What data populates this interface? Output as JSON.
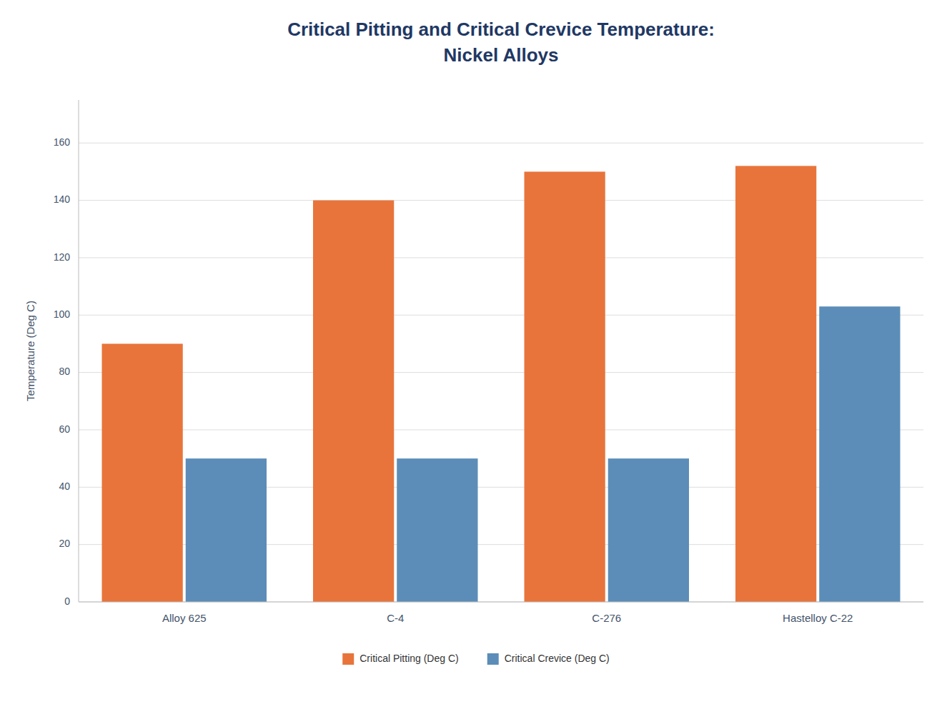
{
  "chart_data": {
    "type": "bar",
    "title": "Critical Pitting and Critical Crevice Temperature:\nNickel Alloys",
    "ylabel": "Temperature (Deg C)",
    "categories": [
      "Alloy 625",
      "C-4",
      "C-276",
      "Hastelloy C-22"
    ],
    "series": [
      {
        "name": "Critical Pitting (Deg C)",
        "color": "#E8743B",
        "values": [
          90,
          140,
          150,
          152
        ]
      },
      {
        "name": "Critical Crevice (Deg C)",
        "color": "#5B8DB8",
        "values": [
          50,
          50,
          50,
          103
        ]
      }
    ],
    "ylim": [
      0,
      175
    ],
    "yticks": [
      0,
      20,
      40,
      60,
      80,
      100,
      120,
      140,
      160
    ],
    "grid": true,
    "legend": "bottom"
  }
}
